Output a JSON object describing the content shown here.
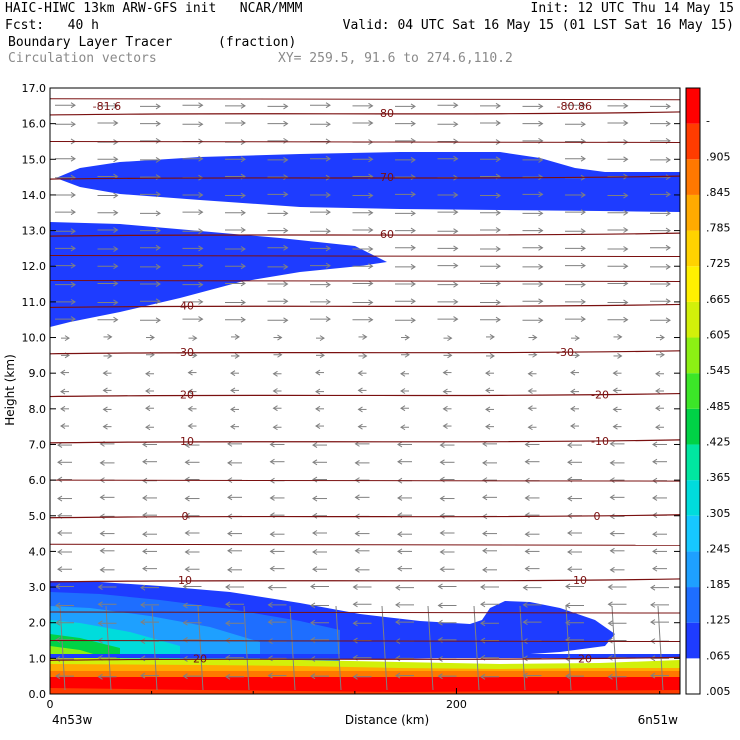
{
  "header": {
    "line1_left": "HAIC-HIWC 13km ARW-GFS init   NCAR/MMM",
    "line1_right": "Init: 12 UTC Thu 14 May 15",
    "line2_left": "Fcst:   40 h",
    "line2_right": "Valid: 04 UTC Sat 16 May 15 (01 LST Sat 16 May 15)",
    "field_name": "Boundary Layer Tracer",
    "field_units": "(fraction)",
    "vectors_label": "Circulation vectors",
    "xy_label": "XY= 259.5, 91.6 to 274.6,110.2"
  },
  "chart_data": {
    "type": "heatmap",
    "xlabel": "Distance (km)",
    "ylabel": "Height (km)",
    "xlim": [
      0,
      310
    ],
    "ylim": [
      0.0,
      17.0
    ],
    "x_ticks": [
      {
        "value": 0,
        "label": "0"
      },
      {
        "value": 200,
        "label": "200"
      }
    ],
    "x_end_labels": {
      "left": "4n53w",
      "right": "6n51w"
    },
    "y_ticks": [
      "0.0",
      "1.0",
      "2.0",
      "3.0",
      "4.0",
      "5.0",
      "6.0",
      "7.0",
      "8.0",
      "9.0",
      "10.0",
      "11.0",
      "12.0",
      "13.0",
      "14.0",
      "15.0",
      "16.0",
      "17.0"
    ],
    "colorbar": {
      "levels": [
        ".005",
        ".065",
        ".125",
        ".185",
        ".245",
        ".305",
        ".365",
        ".425",
        ".485",
        ".545",
        ".605",
        ".665",
        ".725",
        ".785",
        ".845",
        ".905",
        "-"
      ],
      "colors": [
        "#ffffff",
        "#1e3cff",
        "#1e6eff",
        "#1ea0ff",
        "#16c8ff",
        "#00dcdc",
        "#00e6a0",
        "#00d246",
        "#3ce628",
        "#8cf014",
        "#d2f00a",
        "#fff000",
        "#ffd200",
        "#ffaa00",
        "#ff7800",
        "#ff3c00",
        "#ff0000"
      ]
    },
    "temperature_contours": [
      {
        "label": "-80",
        "height": 16.3
      },
      {
        "label": "-70",
        "height": 14.5
      },
      {
        "label": "-60",
        "height": 12.9
      },
      {
        "label": "-40",
        "height": 10.9
      },
      {
        "label": "-30",
        "height": 9.6
      },
      {
        "label": "-20",
        "height": 8.4
      },
      {
        "label": "-10",
        "height": 7.1
      },
      {
        "label": "0",
        "height": 5.0
      },
      {
        "label": "10",
        "height": 3.2
      },
      {
        "label": "20",
        "height": 1.0
      }
    ],
    "extreme_labels": [
      {
        "label": "-81.6",
        "x": 28,
        "height": 16.5
      },
      {
        "label": "-80.86",
        "x": 258,
        "height": 16.5
      }
    ],
    "wind_direction": {
      "above_km": 9.0,
      "upper": "west-to-east",
      "lower": "east-to-west"
    }
  }
}
